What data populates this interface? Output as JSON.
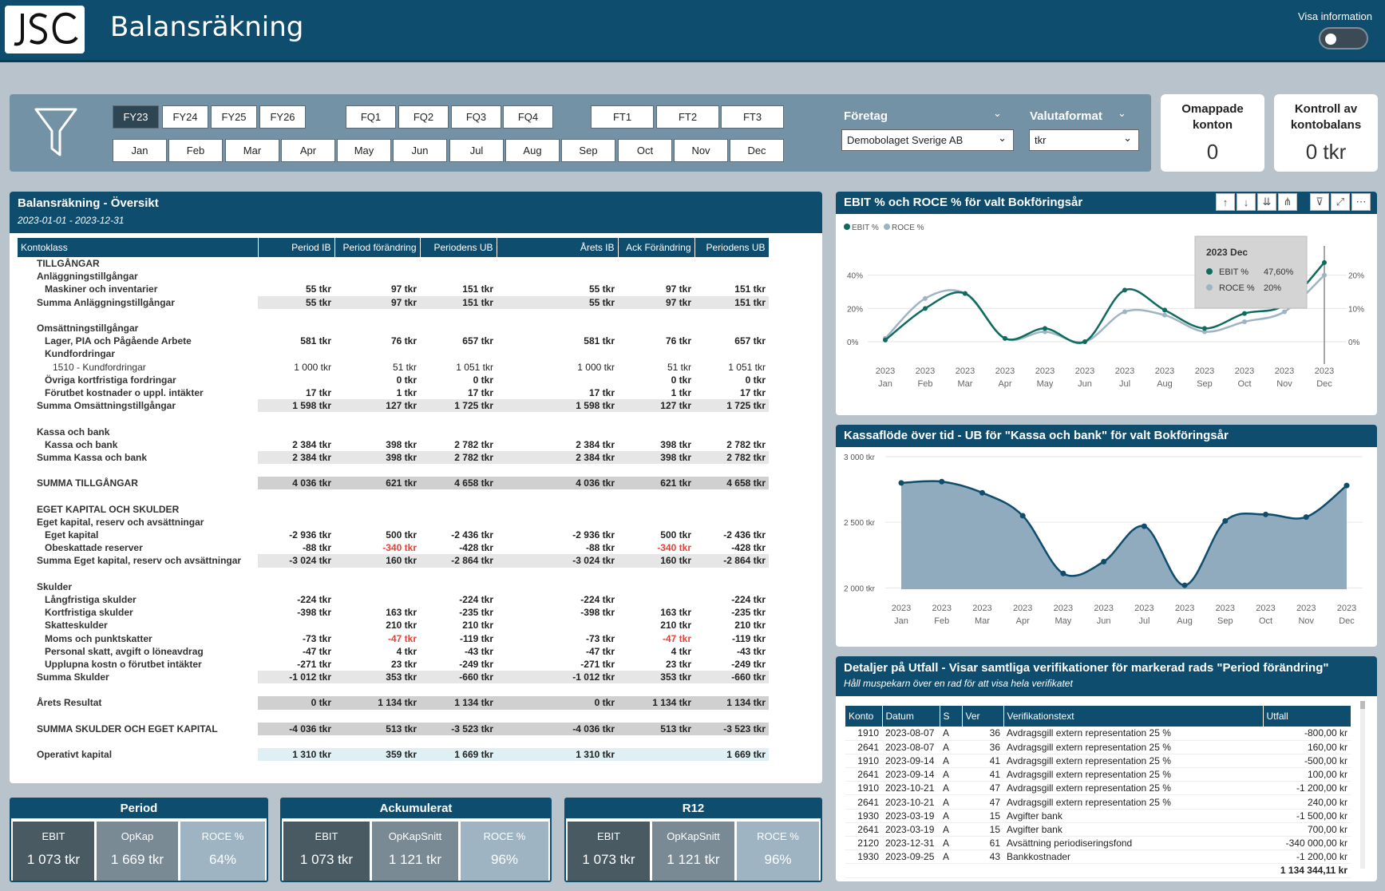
{
  "header": {
    "title": "Balansräkning",
    "visa_label": "Visa information"
  },
  "filters": {
    "fy": [
      {
        "label": "FY23",
        "selected": true
      },
      {
        "label": "FY24"
      },
      {
        "label": "FY25"
      },
      {
        "label": "FY26"
      }
    ],
    "fq": [
      "FQ1",
      "FQ2",
      "FQ3",
      "FQ4"
    ],
    "ft": [
      "FT1",
      "FT2",
      "FT3"
    ],
    "months": [
      "Jan",
      "Feb",
      "Mar",
      "Apr",
      "May",
      "Jun",
      "Jul",
      "Aug",
      "Sep",
      "Oct",
      "Nov",
      "Dec"
    ],
    "foretag_label": "Företag",
    "foretag_value": "Demobolaget Sverige AB",
    "valuta_label": "Valutaformat",
    "valuta_value": "tkr"
  },
  "cards": {
    "omappade_label": "Omappade konton",
    "omappade_value": "0",
    "kontroll_label": "Kontroll av kontobalans",
    "kontroll_value": "0 tkr"
  },
  "balans": {
    "title": "Balansräkning - Översikt",
    "period": "2023-01-01 - 2023-12-31",
    "columns": [
      "Kontoklass",
      "Period IB",
      "Period förändring",
      "Periodens UB",
      "Årets IB",
      "Ack Förändring",
      "Periodens UB"
    ],
    "rows": [
      {
        "l": "TILLGÅNGAR",
        "i": 1,
        "t": "h",
        "v": [
          "",
          "",
          "",
          "",
          "",
          ""
        ]
      },
      {
        "l": "Anläggningstillgångar",
        "i": 1,
        "t": "h",
        "v": [
          "",
          "",
          "",
          "",
          "",
          ""
        ]
      },
      {
        "l": "Maskiner och inventarier",
        "i": 2,
        "t": "b",
        "v": [
          "55 tkr",
          "97 tkr",
          "151 tkr",
          "55 tkr",
          "97 tkr",
          "151 tkr"
        ]
      },
      {
        "l": "Summa Anläggningstillgångar",
        "i": 1,
        "t": "s",
        "v": [
          "55 tkr",
          "97 tkr",
          "151 tkr",
          "55 tkr",
          "97 tkr",
          "151 tkr"
        ]
      },
      {
        "l": "",
        "i": 0,
        "t": "e",
        "v": [
          "",
          "",
          "",
          "",
          "",
          ""
        ]
      },
      {
        "l": "Omsättningstillgångar",
        "i": 1,
        "t": "h",
        "v": [
          "",
          "",
          "",
          "",
          "",
          ""
        ]
      },
      {
        "l": "Lager, PIA och Pågående Arbete",
        "i": 2,
        "t": "b",
        "v": [
          "581 tkr",
          "76 tkr",
          "657 tkr",
          "581 tkr",
          "76 tkr",
          "657 tkr"
        ]
      },
      {
        "l": "Kundfordringar",
        "i": 2,
        "t": "h",
        "v": [
          "",
          "",
          "",
          "",
          "",
          ""
        ]
      },
      {
        "l": "1510 - Kundfordringar",
        "i": 3,
        "t": "n",
        "v": [
          "1 000 tkr",
          "51 tkr",
          "1 051 tkr",
          "1 000 tkr",
          "51 tkr",
          "1 051 tkr"
        ]
      },
      {
        "l": "Övriga kortfristiga fordringar",
        "i": 2,
        "t": "b",
        "v": [
          "",
          "0 tkr",
          "0 tkr",
          "",
          "0 tkr",
          "0 tkr"
        ]
      },
      {
        "l": "Förutbet kostnader o uppl. intäkter",
        "i": 2,
        "t": "b",
        "v": [
          "17 tkr",
          "1 tkr",
          "17 tkr",
          "17 tkr",
          "1 tkr",
          "17 tkr"
        ]
      },
      {
        "l": "Summa Omsättningstillgångar",
        "i": 1,
        "t": "s",
        "v": [
          "1 598 tkr",
          "127 tkr",
          "1 725 tkr",
          "1 598 tkr",
          "127 tkr",
          "1 725 tkr"
        ]
      },
      {
        "l": "",
        "i": 0,
        "t": "e",
        "v": [
          "",
          "",
          "",
          "",
          "",
          ""
        ]
      },
      {
        "l": "Kassa och bank",
        "i": 1,
        "t": "h",
        "v": [
          "",
          "",
          "",
          "",
          "",
          ""
        ]
      },
      {
        "l": "Kassa och bank",
        "i": 2,
        "t": "b",
        "v": [
          "2 384 tkr",
          "398 tkr",
          "2 782 tkr",
          "2 384 tkr",
          "398 tkr",
          "2 782 tkr"
        ]
      },
      {
        "l": "Summa Kassa och bank",
        "i": 1,
        "t": "s",
        "v": [
          "2 384 tkr",
          "398 tkr",
          "2 782 tkr",
          "2 384 tkr",
          "398 tkr",
          "2 782 tkr"
        ]
      },
      {
        "l": "",
        "i": 0,
        "t": "e",
        "v": [
          "",
          "",
          "",
          "",
          "",
          ""
        ]
      },
      {
        "l": "SUMMA TILLGÅNGAR",
        "i": 1,
        "t": "t",
        "v": [
          "4 036 tkr",
          "621 tkr",
          "4 658 tkr",
          "4 036 tkr",
          "621 tkr",
          "4 658 tkr"
        ]
      },
      {
        "l": "",
        "i": 0,
        "t": "e",
        "v": [
          "",
          "",
          "",
          "",
          "",
          ""
        ]
      },
      {
        "l": "EGET KAPITAL OCH SKULDER",
        "i": 1,
        "t": "h",
        "v": [
          "",
          "",
          "",
          "",
          "",
          ""
        ]
      },
      {
        "l": "Eget kapital, reserv och avsättningar",
        "i": 1,
        "t": "h",
        "v": [
          "",
          "",
          "",
          "",
          "",
          ""
        ]
      },
      {
        "l": "Eget kapital",
        "i": 2,
        "t": "b",
        "v": [
          "-2 936 tkr",
          "500 tkr",
          "-2 436 tkr",
          "-2 936 tkr",
          "500 tkr",
          "-2 436 tkr"
        ]
      },
      {
        "l": "Obeskattade reserver",
        "i": 2,
        "t": "b",
        "v": [
          "-88 tkr",
          "-340 tkr",
          "-428 tkr",
          "-88 tkr",
          "-340 tkr",
          "-428 tkr"
        ],
        "neg": [
          1,
          4
        ]
      },
      {
        "l": "Summa Eget kapital, reserv och avsättningar",
        "i": 1,
        "t": "s",
        "v": [
          "-3 024 tkr",
          "160 tkr",
          "-2 864 tkr",
          "-3 024 tkr",
          "160 tkr",
          "-2 864 tkr"
        ]
      },
      {
        "l": "",
        "i": 0,
        "t": "e",
        "v": [
          "",
          "",
          "",
          "",
          "",
          ""
        ]
      },
      {
        "l": "Skulder",
        "i": 1,
        "t": "h",
        "v": [
          "",
          "",
          "",
          "",
          "",
          ""
        ]
      },
      {
        "l": "Långfristiga skulder",
        "i": 2,
        "t": "b",
        "v": [
          "-224 tkr",
          "",
          "-224 tkr",
          "-224 tkr",
          "",
          "-224 tkr"
        ]
      },
      {
        "l": "Kortfristiga skulder",
        "i": 2,
        "t": "b",
        "v": [
          "-398 tkr",
          "163 tkr",
          "-235 tkr",
          "-398 tkr",
          "163 tkr",
          "-235 tkr"
        ]
      },
      {
        "l": "Skatteskulder",
        "i": 2,
        "t": "b",
        "v": [
          "",
          "210 tkr",
          "210 tkr",
          "",
          "210 tkr",
          "210 tkr"
        ]
      },
      {
        "l": "Moms och punktskatter",
        "i": 2,
        "t": "b",
        "v": [
          "-73 tkr",
          "-47 tkr",
          "-119 tkr",
          "-73 tkr",
          "-47 tkr",
          "-119 tkr"
        ],
        "neg": [
          1,
          4
        ]
      },
      {
        "l": "Personal skatt, avgift o löneavdrag",
        "i": 2,
        "t": "b",
        "v": [
          "-47 tkr",
          "4 tkr",
          "-43 tkr",
          "-47 tkr",
          "4 tkr",
          "-43 tkr"
        ]
      },
      {
        "l": "Upplupna kostn o förutbet intäkter",
        "i": 2,
        "t": "b",
        "v": [
          "-271 tkr",
          "23 tkr",
          "-249 tkr",
          "-271 tkr",
          "23 tkr",
          "-249 tkr"
        ]
      },
      {
        "l": "Summa Skulder",
        "i": 1,
        "t": "s",
        "v": [
          "-1 012 tkr",
          "353 tkr",
          "-660 tkr",
          "-1 012 tkr",
          "353 tkr",
          "-660 tkr"
        ]
      },
      {
        "l": "",
        "i": 0,
        "t": "e",
        "v": [
          "",
          "",
          "",
          "",
          "",
          ""
        ]
      },
      {
        "l": "Årets Resultat",
        "i": 1,
        "t": "t",
        "v": [
          "0 tkr",
          "1 134 tkr",
          "1 134 tkr",
          "0 tkr",
          "1 134 tkr",
          "1 134 tkr"
        ]
      },
      {
        "l": "",
        "i": 0,
        "t": "e",
        "v": [
          "",
          "",
          "",
          "",
          "",
          ""
        ]
      },
      {
        "l": "SUMMA SKULDER OCH EGET KAPITAL",
        "i": 1,
        "t": "t",
        "v": [
          "-4 036 tkr",
          "513 tkr",
          "-3 523 tkr",
          "-4 036 tkr",
          "513 tkr",
          "-3 523 tkr"
        ]
      },
      {
        "l": "",
        "i": 0,
        "t": "e",
        "v": [
          "",
          "",
          "",
          "",
          "",
          ""
        ]
      },
      {
        "l": "Operativt kapital",
        "i": 1,
        "t": "o",
        "v": [
          "1 310 tkr",
          "359 tkr",
          "1 669 tkr",
          "1 310 tkr",
          "",
          "1 669 tkr"
        ]
      }
    ]
  },
  "kpis": [
    {
      "title": "Period",
      "tiles": [
        {
          "label": "EBIT",
          "value": "1 073 tkr",
          "color": "#4a5a63"
        },
        {
          "label": "OpKap",
          "value": "1 669 tkr",
          "color": "#7a8a94"
        },
        {
          "label": "ROCE %",
          "value": "64%",
          "color": "#9fb4c2"
        }
      ]
    },
    {
      "title": "Ackumulerat",
      "tiles": [
        {
          "label": "EBIT",
          "value": "1 073 tkr",
          "color": "#4a5a63"
        },
        {
          "label": "OpKapSnitt",
          "value": "1 121 tkr",
          "color": "#7a8a94"
        },
        {
          "label": "ROCE %",
          "value": "96%",
          "color": "#9fb4c2"
        }
      ]
    },
    {
      "title": "R12",
      "tiles": [
        {
          "label": "EBIT",
          "value": "1 073 tkr",
          "color": "#4a5a63"
        },
        {
          "label": "OpKapSnitt",
          "value": "1 121 tkr",
          "color": "#7a8a94"
        },
        {
          "label": "ROCE %",
          "value": "96%",
          "color": "#9fb4c2"
        }
      ]
    }
  ],
  "chart_data": [
    {
      "type": "line",
      "title": "EBIT % och ROCE % för valt Bokföringsår",
      "x": [
        "2023 Jan",
        "2023 Feb",
        "2023 Mar",
        "2023 Apr",
        "2023 May",
        "2023 Jun",
        "2023 Jul",
        "2023 Aug",
        "2023 Sep",
        "2023 Oct",
        "2023 Nov",
        "2023 Dec"
      ],
      "x_years": [
        "2023",
        "2023",
        "2023",
        "2023",
        "2023",
        "2023",
        "2023",
        "2023",
        "2023",
        "2023",
        "2023",
        "2023"
      ],
      "x_months": [
        "Jan",
        "Feb",
        "Mar",
        "Apr",
        "May",
        "Jun",
        "Jul",
        "Aug",
        "Sep",
        "Oct",
        "Nov",
        "Dec"
      ],
      "series": [
        {
          "name": "EBIT %",
          "color": "#0f6b5e",
          "axis": "left",
          "values": [
            1,
            20,
            29,
            2,
            8,
            0,
            31,
            19,
            8,
            17,
            22,
            47.6
          ]
        },
        {
          "name": "ROCE %",
          "color": "#9fb4c2",
          "axis": "right",
          "values": [
            1,
            13,
            14.5,
            1,
            3,
            0,
            9,
            8,
            3,
            6,
            9,
            20
          ]
        }
      ],
      "y_left": {
        "ticks": [
          "0%",
          "20%",
          "40%"
        ],
        "range": [
          0,
          48
        ]
      },
      "y_right": {
        "ticks": [
          "0%",
          "10%",
          "20%"
        ],
        "range": [
          0,
          24
        ]
      },
      "tooltip": {
        "title": "2023 Dec",
        "rows": [
          {
            "label": "EBIT %",
            "value": "47,60%",
            "color": "#0f6b5e"
          },
          {
            "label": "ROCE %",
            "value": "20%",
            "color": "#9fb4c2"
          }
        ]
      }
    },
    {
      "type": "area",
      "title": "Kassaflöde över tid - UB för \"Kassa och bank\" för valt Bokföringsår",
      "x_years": [
        "2023",
        "2023",
        "2023",
        "2023",
        "2023",
        "2023",
        "2023",
        "2023",
        "2023",
        "2023",
        "2023",
        "2023"
      ],
      "x_months": [
        "Jan",
        "Feb",
        "Mar",
        "Apr",
        "May",
        "Jun",
        "Jul",
        "Aug",
        "Sep",
        "Oct",
        "Nov",
        "Dec"
      ],
      "values": [
        2800,
        2810,
        2725,
        2550,
        2110,
        2200,
        2470,
        2020,
        2510,
        2560,
        2540,
        2780
      ],
      "color": "#0f4d6e",
      "fill": "#8fabbd",
      "y": {
        "ticks": [
          "2 000 tkr",
          "2 500 tkr",
          "3 000 tkr"
        ],
        "tick_values": [
          2000,
          2500,
          3000
        ],
        "range": [
          1990,
          3000
        ]
      }
    }
  ],
  "details": {
    "title": "Detaljer på Utfall - Visar samtliga verifikationer för markerad rads \"Period förändring\"",
    "subtitle": "Håll muspekarn över en rad för att visa hela verifikatet",
    "columns": [
      "Konto",
      "Datum",
      "S",
      "Ver",
      "Verifikationstext",
      "Utfall"
    ],
    "rows": [
      [
        "1910",
        "2023-08-07",
        "A",
        "36",
        "Avdragsgill extern representation 25 %",
        "-800,00 kr"
      ],
      [
        "2641",
        "2023-08-07",
        "A",
        "36",
        "Avdragsgill extern representation 25 %",
        "160,00 kr"
      ],
      [
        "1910",
        "2023-09-14",
        "A",
        "41",
        "Avdragsgill extern representation 25 %",
        "-500,00 kr"
      ],
      [
        "2641",
        "2023-09-14",
        "A",
        "41",
        "Avdragsgill extern representation 25 %",
        "100,00 kr"
      ],
      [
        "1910",
        "2023-10-21",
        "A",
        "47",
        "Avdragsgill extern representation 25 %",
        "-1 200,00 kr"
      ],
      [
        "2641",
        "2023-10-21",
        "A",
        "47",
        "Avdragsgill extern representation 25 %",
        "240,00 kr"
      ],
      [
        "1930",
        "2023-03-19",
        "A",
        "15",
        "Avgifter bank",
        "-1 500,00 kr"
      ],
      [
        "2641",
        "2023-03-19",
        "A",
        "15",
        "Avgifter bank",
        "700,00 kr"
      ],
      [
        "2120",
        "2023-12-31",
        "A",
        "61",
        "Avsättning periodiseringsfond",
        "-340 000,00 kr"
      ],
      [
        "1930",
        "2023-09-25",
        "A",
        "43",
        "Bankkostnader",
        "-1 200,00 kr"
      ]
    ],
    "total": "1 134 344,11 kr"
  }
}
